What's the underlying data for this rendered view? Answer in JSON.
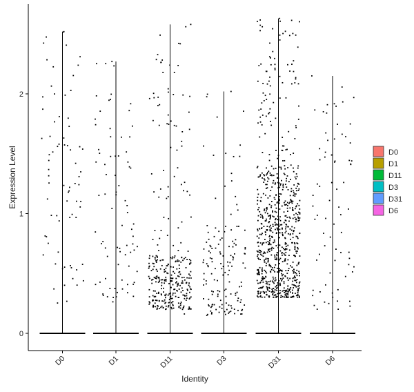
{
  "chart_data": {
    "type": "violin",
    "title": "",
    "xlabel": "Identity",
    "ylabel": "Expression Level",
    "ylim": [
      -0.15,
      2.7
    ],
    "yticks": [
      0,
      1,
      2
    ],
    "grid": false,
    "legend_position": "right",
    "categories": [
      "D0",
      "D1",
      "D11",
      "D3",
      "D31",
      "D6"
    ],
    "colors": [
      "#F8766D",
      "#B79F00",
      "#00BA38",
      "#00BFC4",
      "#619CFF",
      "#F564E3"
    ],
    "series": [
      {
        "name": "D0",
        "max": 2.52,
        "nonzero_points": 75,
        "nonzero_range": [
          0.25,
          2.52
        ],
        "dense_range": [
          0.25,
          2.5
        ]
      },
      {
        "name": "D1",
        "max": 2.27,
        "nonzero_points": 80,
        "nonzero_range": [
          0.22,
          2.27
        ],
        "dense_range": [
          0.3,
          2.0
        ]
      },
      {
        "name": "D11",
        "max": 2.58,
        "nonzero_points": 330,
        "nonzero_range": [
          0.15,
          2.58
        ],
        "dense_range": [
          0.2,
          0.65
        ]
      },
      {
        "name": "D3",
        "max": 2.02,
        "nonzero_points": 150,
        "nonzero_range": [
          0.13,
          2.02
        ],
        "dense_range": [
          0.15,
          0.9
        ]
      },
      {
        "name": "D31",
        "max": 2.63,
        "nonzero_points": 800,
        "nonzero_range": [
          0.28,
          2.63
        ],
        "dense_range": [
          0.3,
          1.4
        ]
      },
      {
        "name": "D6",
        "max": 2.15,
        "nonzero_points": 75,
        "nonzero_range": [
          0.17,
          2.15
        ],
        "dense_range": [
          0.2,
          1.9
        ]
      }
    ]
  }
}
